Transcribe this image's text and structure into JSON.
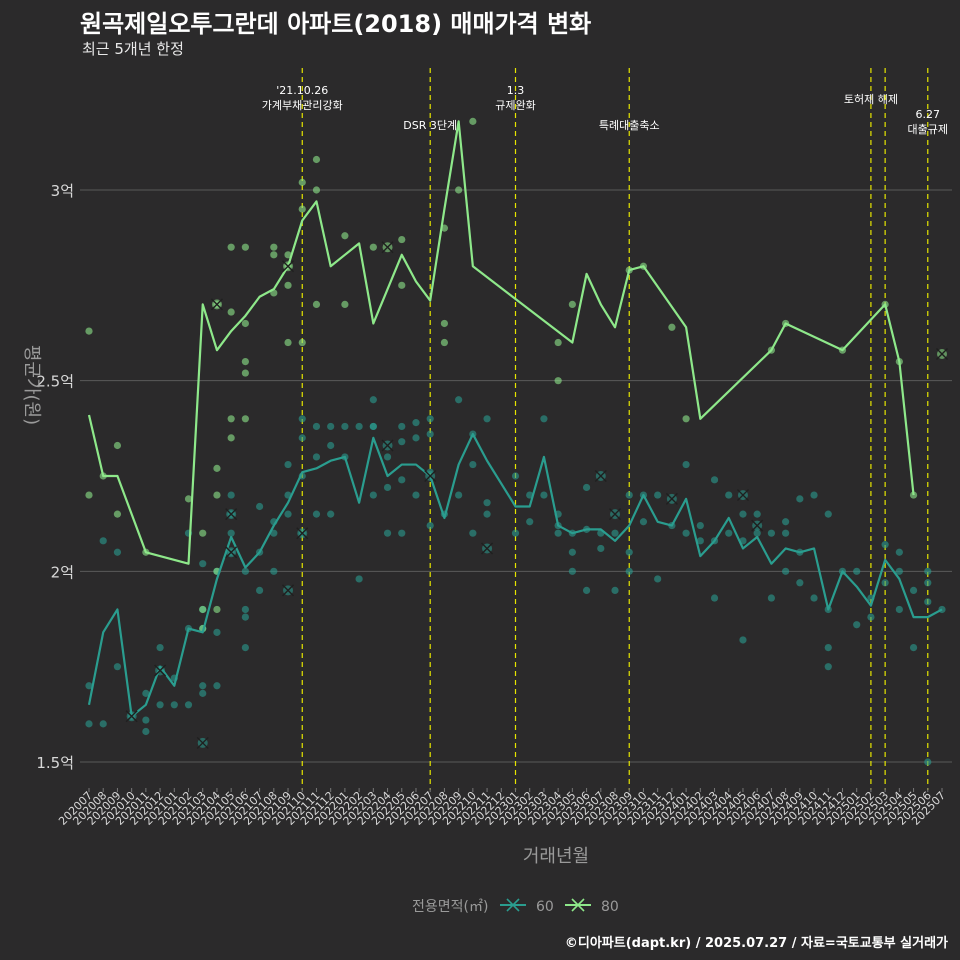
{
  "title": "원곡제일오투그란데 아파트(2018) 매매가격 변화",
  "subtitle": "최근 5개년 한정",
  "caption": "©디아파트(dapt.kr) / 2025.07.27 / 자료=국토교통부 실거래가",
  "colors": {
    "background": "#2b2a2b",
    "grid": "#5a5a5a",
    "s60": "#2a9d8f",
    "s80": "#8ee88a",
    "event": "#e6e600",
    "axis_text": "#d8d8d8"
  },
  "chart_data": {
    "type": "line",
    "xlabel": "거래년월",
    "ylabel": "평균가(원)",
    "ylim": [
      1.43,
      3.33
    ],
    "yticks": [
      1.5,
      2,
      2.5,
      3
    ],
    "ytick_labels": [
      "1.5억",
      "2억",
      "2.5억",
      "3억"
    ],
    "grid": true,
    "legend": {
      "title": "전용면적(㎡)",
      "position": "bottom",
      "entries": [
        "60",
        "80"
      ]
    },
    "categories": [
      "202007",
      "202008",
      "202009",
      "202010",
      "202011",
      "202012",
      "202101",
      "202102",
      "202103",
      "202104",
      "202105",
      "202106",
      "202107",
      "202108",
      "202109",
      "202110",
      "202111",
      "202112",
      "202201",
      "202202",
      "202203",
      "202204",
      "202205",
      "202206",
      "202207",
      "202208",
      "202209",
      "202210",
      "202211",
      "202212",
      "202301",
      "202302",
      "202303",
      "202304",
      "202305",
      "202306",
      "202307",
      "202308",
      "202309",
      "202310",
      "202311",
      "202312",
      "202401",
      "202402",
      "202403",
      "202404",
      "202405",
      "202406",
      "202407",
      "202408",
      "202409",
      "202410",
      "202411",
      "202412",
      "202501",
      "202502",
      "202503",
      "202504",
      "202505",
      "202506",
      "202507"
    ],
    "events": [
      {
        "x": "202110",
        "lines": [
          "'21.10.26",
          "가계부채관리강화"
        ],
        "level": 0
      },
      {
        "x": "202207",
        "lines": [
          "DSR 3단계"
        ],
        "level": 2
      },
      {
        "x": "202301",
        "lines": [
          "1.3",
          "규제완화"
        ],
        "level": 0
      },
      {
        "x": "202309",
        "lines": [
          "특례대출축소"
        ],
        "level": 2
      },
      {
        "x": "202502",
        "lines": [
          "토허제 해제"
        ],
        "level": 1
      },
      {
        "x": "202503",
        "lines": [],
        "level": 1
      },
      {
        "x": "202506",
        "lines": [
          "6.27",
          "대출규제"
        ],
        "level": 3
      }
    ],
    "series": [
      {
        "name": "60",
        "values": [
          1.65,
          1.84,
          1.9,
          1.62,
          1.65,
          1.75,
          1.7,
          1.85,
          1.84,
          1.98,
          2.09,
          2.01,
          2.05,
          2.12,
          2.18,
          2.26,
          2.27,
          2.29,
          2.3,
          2.18,
          2.35,
          2.25,
          2.28,
          2.28,
          2.25,
          2.14,
          2.28,
          2.36,
          2.29,
          null,
          2.17,
          2.17,
          2.3,
          2.12,
          2.1,
          2.11,
          2.11,
          2.08,
          2.12,
          2.2,
          2.13,
          2.12,
          2.19,
          2.04,
          2.08,
          2.14,
          2.06,
          2.09,
          2.02,
          2.06,
          2.05,
          2.06,
          1.9,
          2.0,
          1.96,
          1.91,
          2.03,
          1.98,
          1.88,
          1.88,
          1.9
        ],
        "points": [
          [
            0,
            1.7
          ],
          [
            0,
            1.6
          ],
          [
            1,
            1.6
          ],
          [
            1,
            2.08
          ],
          [
            2,
            2.05
          ],
          [
            2,
            1.75
          ],
          [
            3,
            1.62
          ],
          [
            4,
            1.58
          ],
          [
            4,
            1.61
          ],
          [
            4,
            1.68
          ],
          [
            5,
            1.8
          ],
          [
            5,
            1.65
          ],
          [
            6,
            1.72
          ],
          [
            6,
            1.65
          ],
          [
            7,
            2.1
          ],
          [
            7,
            1.85
          ],
          [
            7,
            1.65
          ],
          [
            8,
            1.7
          ],
          [
            8,
            1.68
          ],
          [
            8,
            1.85
          ],
          [
            8,
            1.9
          ],
          [
            8,
            2.02
          ],
          [
            9,
            1.7
          ],
          [
            9,
            2.0
          ],
          [
            9,
            1.84
          ],
          [
            10,
            2.2
          ],
          [
            10,
            2.15
          ],
          [
            10,
            2.1
          ],
          [
            10,
            2.05
          ],
          [
            11,
            1.9
          ],
          [
            11,
            1.8
          ],
          [
            11,
            2.0
          ],
          [
            11,
            1.88
          ],
          [
            12,
            2.05
          ],
          [
            12,
            2.17
          ],
          [
            12,
            1.95
          ],
          [
            13,
            2.1
          ],
          [
            13,
            2.0
          ],
          [
            13,
            2.13
          ],
          [
            14,
            2.2
          ],
          [
            14,
            2.15
          ],
          [
            14,
            2.28
          ],
          [
            15,
            2.4
          ],
          [
            15,
            2.25
          ],
          [
            15,
            2.35
          ],
          [
            15,
            2.1
          ],
          [
            16,
            2.38
          ],
          [
            16,
            2.3
          ],
          [
            16,
            2.15
          ],
          [
            17,
            2.33
          ],
          [
            17,
            2.38
          ],
          [
            17,
            2.15
          ],
          [
            18,
            2.38
          ],
          [
            18,
            2.3
          ],
          [
            19,
            2.38
          ],
          [
            19,
            1.98
          ],
          [
            20,
            2.45
          ],
          [
            20,
            2.38
          ],
          [
            20,
            2.38
          ],
          [
            20,
            2.2
          ],
          [
            21,
            2.22
          ],
          [
            21,
            2.1
          ],
          [
            21,
            2.3
          ],
          [
            22,
            2.38
          ],
          [
            22,
            2.34
          ],
          [
            22,
            2.24
          ],
          [
            22,
            2.1
          ],
          [
            23,
            2.39
          ],
          [
            23,
            2.35
          ],
          [
            23,
            2.2
          ],
          [
            24,
            2.4
          ],
          [
            24,
            2.36
          ],
          [
            24,
            2.26
          ],
          [
            24,
            2.12
          ],
          [
            25,
            2.15
          ],
          [
            26,
            2.45
          ],
          [
            26,
            2.2
          ],
          [
            27,
            2.36
          ],
          [
            27,
            2.28
          ],
          [
            27,
            2.1
          ],
          [
            28,
            2.4
          ],
          [
            28,
            2.15
          ],
          [
            28,
            2.18
          ],
          [
            30,
            2.25
          ],
          [
            30,
            2.1
          ],
          [
            31,
            2.2
          ],
          [
            31,
            2.13
          ],
          [
            32,
            2.4
          ],
          [
            32,
            2.2
          ],
          [
            33,
            2.15
          ],
          [
            33,
            2.12
          ],
          [
            33,
            2.1
          ],
          [
            34,
            2.1
          ],
          [
            34,
            2.05
          ],
          [
            34,
            2.0
          ],
          [
            35,
            2.22
          ],
          [
            35,
            2.11
          ],
          [
            35,
            1.95
          ],
          [
            36,
            2.1
          ],
          [
            36,
            2.06
          ],
          [
            37,
            2.1
          ],
          [
            37,
            1.95
          ],
          [
            38,
            2.2
          ],
          [
            38,
            2.05
          ],
          [
            38,
            2.0
          ],
          [
            39,
            2.2
          ],
          [
            39,
            2.13
          ],
          [
            40,
            2.2
          ],
          [
            40,
            1.98
          ],
          [
            41,
            2.12
          ],
          [
            42,
            2.28
          ],
          [
            42,
            2.1
          ],
          [
            43,
            2.12
          ],
          [
            43,
            2.08
          ],
          [
            44,
            2.24
          ],
          [
            44,
            2.08
          ],
          [
            44,
            1.93
          ],
          [
            45,
            2.2
          ],
          [
            45,
            2.1
          ],
          [
            46,
            2.15
          ],
          [
            46,
            2.08
          ],
          [
            46,
            1.82
          ],
          [
            47,
            2.15
          ],
          [
            47,
            2.1
          ],
          [
            48,
            2.1
          ],
          [
            48,
            1.93
          ],
          [
            49,
            2.13
          ],
          [
            49,
            2.1
          ],
          [
            49,
            2.0
          ],
          [
            50,
            2.19
          ],
          [
            50,
            2.05
          ],
          [
            50,
            1.97
          ],
          [
            51,
            2.2
          ],
          [
            51,
            1.93
          ],
          [
            52,
            2.15
          ],
          [
            52,
            1.8
          ],
          [
            52,
            1.75
          ],
          [
            52,
            1.9
          ],
          [
            53,
            2.0
          ],
          [
            54,
            2.0
          ],
          [
            54,
            1.86
          ],
          [
            55,
            1.93
          ],
          [
            55,
            1.88
          ],
          [
            56,
            2.07
          ],
          [
            56,
            1.97
          ],
          [
            57,
            2.05
          ],
          [
            57,
            1.9
          ],
          [
            57,
            2.0
          ],
          [
            58,
            1.8
          ],
          [
            58,
            1.95
          ],
          [
            59,
            1.5
          ],
          [
            59,
            1.97
          ],
          [
            59,
            1.92
          ],
          [
            59,
            2.0
          ],
          [
            60,
            1.9
          ]
        ],
        "markers": [
          [
            3,
            1.62
          ],
          [
            5,
            1.74
          ],
          [
            8,
            1.55
          ],
          [
            10,
            2.15
          ],
          [
            10,
            2.05
          ],
          [
            14,
            1.95
          ],
          [
            15,
            2.1
          ],
          [
            21,
            2.33
          ],
          [
            24,
            2.25
          ],
          [
            28,
            2.06
          ],
          [
            36,
            2.25
          ],
          [
            37,
            2.15
          ],
          [
            41,
            2.19
          ],
          [
            46,
            2.2
          ],
          [
            47,
            2.12
          ]
        ]
      },
      {
        "name": "80",
        "values": [
          2.41,
          2.25,
          2.25,
          null,
          2.05,
          null,
          null,
          2.02,
          2.7,
          2.58,
          2.63,
          2.67,
          2.72,
          2.74,
          2.8,
          2.92,
          2.97,
          2.8,
          2.83,
          2.86,
          2.65,
          null,
          2.83,
          2.76,
          2.71,
          2.95,
          3.18,
          2.8,
          null,
          null,
          null,
          null,
          null,
          null,
          2.6,
          2.78,
          2.7,
          2.64,
          2.79,
          2.8,
          null,
          null,
          2.64,
          2.4,
          null,
          null,
          null,
          null,
          2.58,
          2.65,
          null,
          null,
          null,
          2.58,
          null,
          null,
          2.7,
          2.55,
          2.2,
          null,
          null
        ],
        "points": [
          [
            0,
            2.63
          ],
          [
            0,
            2.2
          ],
          [
            1,
            2.25
          ],
          [
            2,
            2.15
          ],
          [
            2,
            2.33
          ],
          [
            4,
            2.05
          ],
          [
            7,
            2.19
          ],
          [
            8,
            2.1
          ],
          [
            8,
            1.9
          ],
          [
            8,
            1.85
          ],
          [
            9,
            2.7
          ],
          [
            9,
            2.27
          ],
          [
            9,
            2.2
          ],
          [
            9,
            1.9
          ],
          [
            9,
            2.0
          ],
          [
            10,
            2.85
          ],
          [
            10,
            2.68
          ],
          [
            10,
            2.4
          ],
          [
            10,
            2.35
          ],
          [
            11,
            2.85
          ],
          [
            11,
            2.65
          ],
          [
            11,
            2.55
          ],
          [
            11,
            2.52
          ],
          [
            11,
            2.4
          ],
          [
            13,
            2.85
          ],
          [
            13,
            2.83
          ],
          [
            13,
            2.73
          ],
          [
            14,
            2.83
          ],
          [
            14,
            2.8
          ],
          [
            14,
            2.75
          ],
          [
            14,
            2.6
          ],
          [
            15,
            3.02
          ],
          [
            15,
            2.95
          ],
          [
            15,
            2.6
          ],
          [
            16,
            3.08
          ],
          [
            16,
            3.0
          ],
          [
            16,
            2.7
          ],
          [
            18,
            2.88
          ],
          [
            18,
            2.7
          ],
          [
            20,
            2.85
          ],
          [
            22,
            2.87
          ],
          [
            22,
            2.75
          ],
          [
            25,
            2.9
          ],
          [
            25,
            2.65
          ],
          [
            25,
            2.6
          ],
          [
            26,
            3.0
          ],
          [
            27,
            3.18
          ],
          [
            33,
            2.6
          ],
          [
            33,
            2.5
          ],
          [
            34,
            2.7
          ],
          [
            38,
            2.79
          ],
          [
            39,
            2.8
          ],
          [
            41,
            2.64
          ],
          [
            42,
            2.4
          ],
          [
            48,
            2.58
          ],
          [
            49,
            2.65
          ],
          [
            53,
            2.58
          ],
          [
            56,
            2.7
          ],
          [
            57,
            2.55
          ],
          [
            58,
            2.2
          ]
        ],
        "markers": [
          [
            9,
            2.7
          ],
          [
            14,
            2.8
          ],
          [
            21,
            2.85
          ],
          [
            60,
            2.57
          ]
        ]
      }
    ]
  }
}
